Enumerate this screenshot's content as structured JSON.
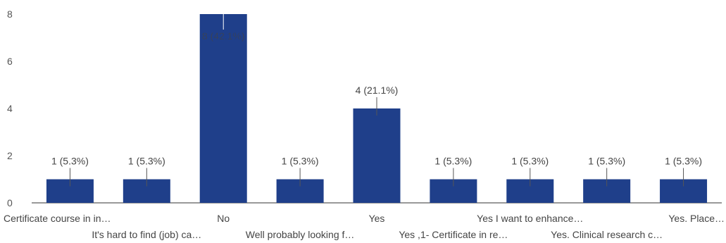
{
  "chart_data": {
    "type": "bar",
    "categories": [
      "Certificate course in in…",
      "It's hard to find (job) ca…",
      "No",
      "Well probably looking f…",
      "Yes",
      "Yes ,1- Certificate in re…",
      "Yes I want to enhance…",
      "Yes. Clinical research c…",
      "Yes. Place…"
    ],
    "values": [
      1,
      1,
      8,
      1,
      4,
      1,
      1,
      1,
      1
    ],
    "data_labels": [
      "1 (5.3%)",
      "1 (5.3%)",
      "8 (42.1%)",
      "1 (5.3%)",
      "4 (21.1%)",
      "1 (5.3%)",
      "1 (5.3%)",
      "1 (5.3%)",
      "1 (5.3%)"
    ],
    "yticks": [
      "0",
      "2",
      "4",
      "6",
      "8"
    ],
    "ylim": [
      0,
      8
    ],
    "grid": false,
    "legend": "none",
    "bar_color": "#1f3f8a"
  }
}
